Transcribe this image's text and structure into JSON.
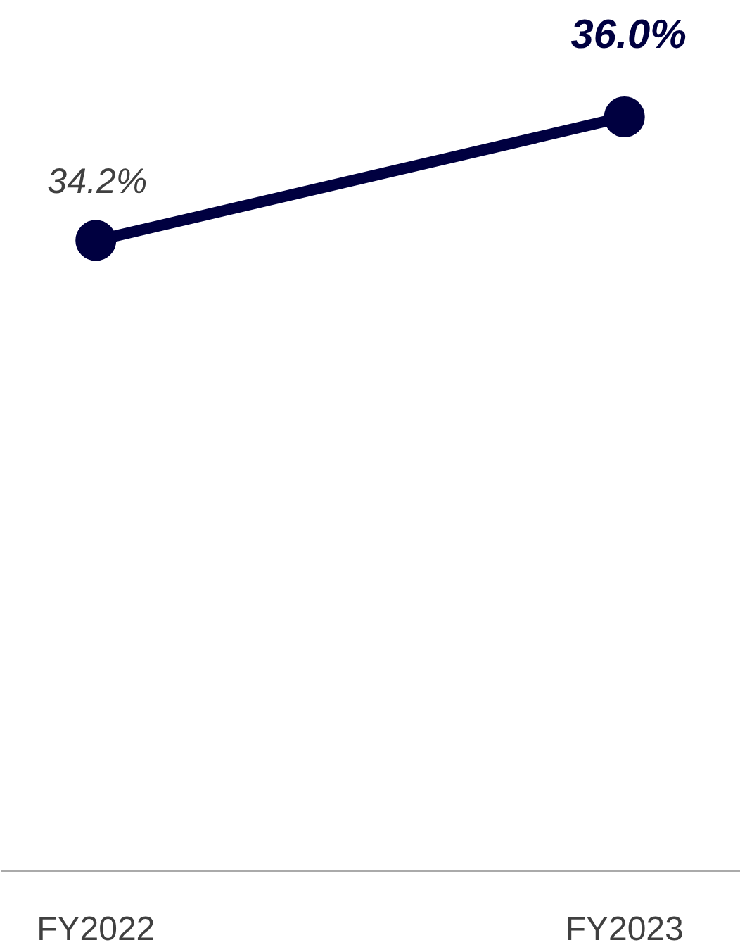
{
  "chart_data": {
    "type": "line",
    "categories": [
      "FY2022",
      "FY2023"
    ],
    "series": [
      {
        "color": "#000040",
        "values": [
          34.2,
          36.0
        ],
        "value_labels": [
          "34.2%",
          "36.0%"
        ]
      }
    ],
    "tick_labels": "x",
    "marker": "circle",
    "line_style": "solid"
  }
}
